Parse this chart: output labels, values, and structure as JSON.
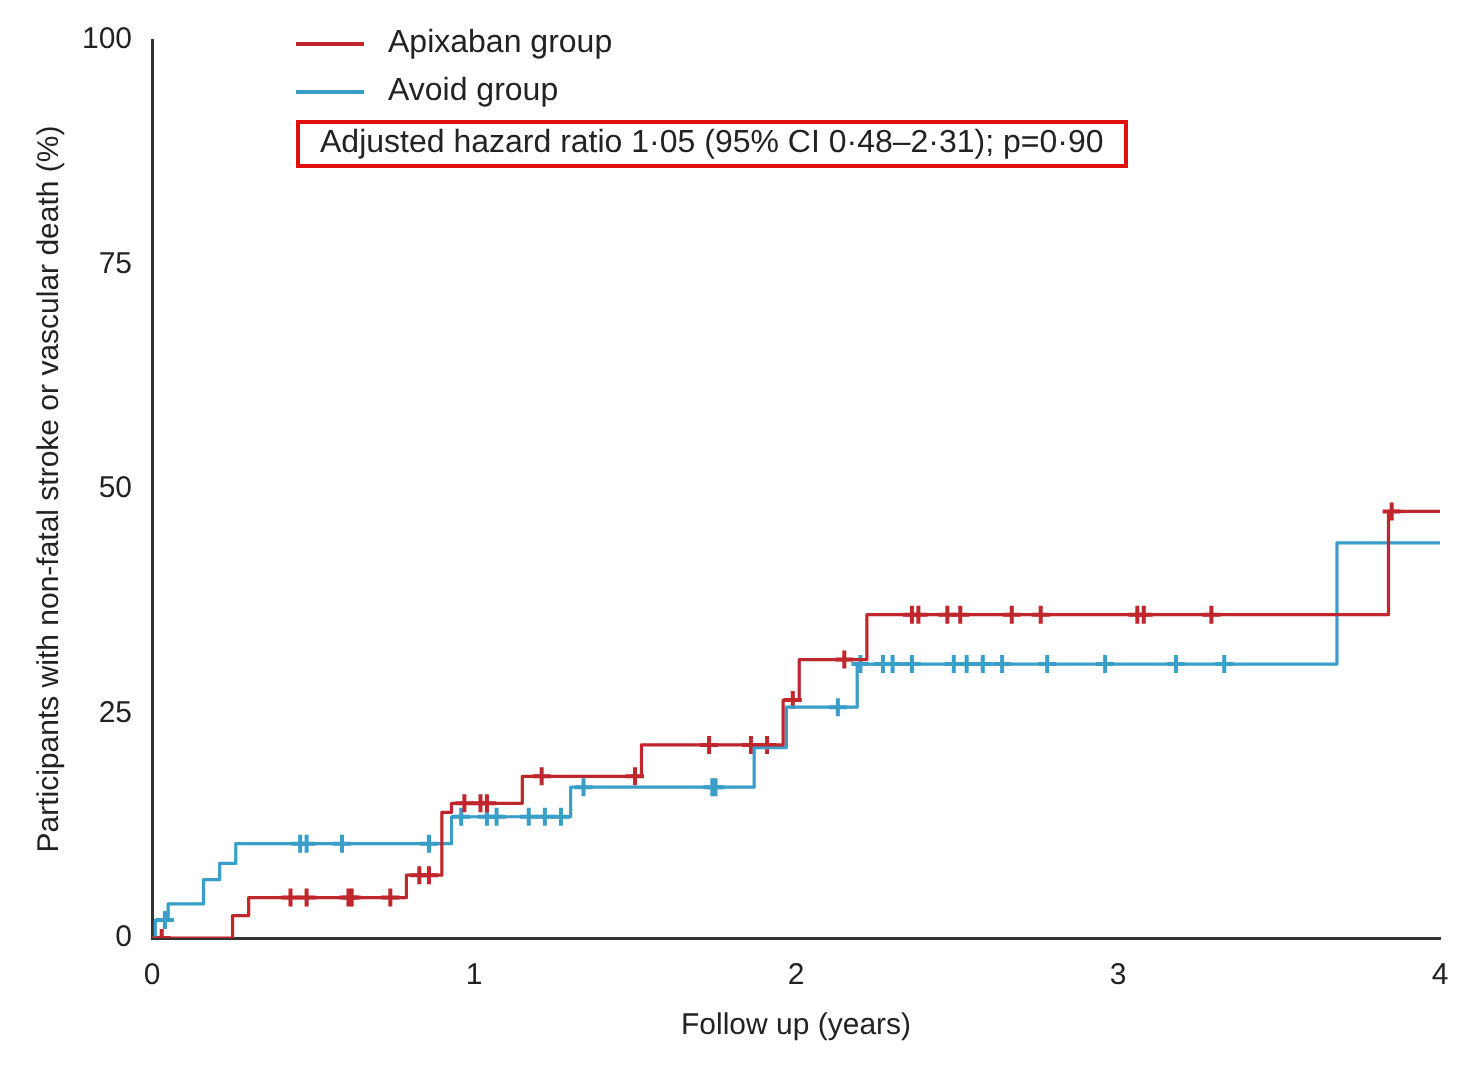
{
  "chart_data": {
    "type": "step",
    "xlabel": "Follow up (years)",
    "ylabel": "Participants with non-fatal stroke or vascular death (%)",
    "xlim": [
      0,
      4
    ],
    "xticks": [
      0,
      1,
      2,
      3,
      4
    ],
    "ylim": [
      0,
      100
    ],
    "yticks": [
      0,
      25,
      50,
      75,
      100
    ],
    "grid": false,
    "legend": "top left",
    "annotations": [
      "Adjusted hazard ratio 1·05 (95% CI 0·48–2·31); p=0·90"
    ],
    "series": [
      {
        "name": "Apixaban group",
        "color": "#c0272d",
        "type": "step",
        "x": [
          0,
          0.25,
          0.3,
          0.79,
          0.9,
          0.93,
          1.15,
          1.52,
          1.96,
          2.01,
          2.22,
          3.84,
          4
        ],
        "values": [
          0,
          2.5,
          4.5,
          7,
          14,
          15,
          18,
          21.5,
          26.5,
          31,
          36,
          47.5,
          47.5
        ]
      },
      {
        "name": "Avoid group",
        "color": "#3a9fc8",
        "type": "step",
        "x": [
          0,
          0.01,
          0.05,
          0.16,
          0.21,
          0.26,
          0.93,
          1.3,
          1.87,
          1.97,
          2.19,
          3.68,
          4
        ],
        "values": [
          0,
          2,
          3.8,
          6.5,
          8.3,
          10.5,
          13.5,
          16.8,
          21.2,
          25.7,
          30.5,
          44,
          44
        ]
      },
      {
        "color": "#c0272d",
        "type": "scatter",
        "marker": "cross",
        "x": [
          0.03,
          0.43,
          0.48,
          0.61,
          0.62,
          0.74,
          0.83,
          0.86,
          0.97,
          1.02,
          1.04,
          1.21,
          1.5,
          1.73,
          1.86,
          1.91,
          1.99,
          2.15,
          2.36,
          2.38,
          2.47,
          2.51,
          2.67,
          2.76,
          3.06,
          3.08,
          3.29,
          3.85
        ],
        "values": [
          0,
          4.5,
          4.5,
          4.5,
          4.5,
          4.5,
          7,
          7,
          15,
          15,
          15,
          18,
          18,
          21.5,
          21.5,
          21.5,
          26.5,
          31,
          36,
          36,
          36,
          36,
          36,
          36,
          36,
          36,
          36,
          47.5
        ]
      },
      {
        "color": "#3a9fc8",
        "type": "scatter",
        "marker": "cross",
        "x": [
          0.04,
          0.46,
          0.48,
          0.59,
          0.86,
          0.96,
          1.04,
          1.07,
          1.17,
          1.22,
          1.27,
          1.34,
          1.74,
          1.75,
          2.13,
          2.2,
          2.27,
          2.3,
          2.36,
          2.49,
          2.53,
          2.58,
          2.64,
          2.78,
          2.96,
          3.18,
          3.33
        ],
        "values": [
          2,
          10.5,
          10.5,
          10.5,
          10.5,
          13.5,
          13.5,
          13.5,
          13.5,
          13.5,
          13.5,
          16.8,
          16.8,
          16.8,
          25.7,
          30.5,
          30.5,
          30.5,
          30.5,
          30.5,
          30.5,
          30.5,
          30.5,
          30.5,
          30.5,
          30.5,
          30.5
        ]
      }
    ]
  }
}
